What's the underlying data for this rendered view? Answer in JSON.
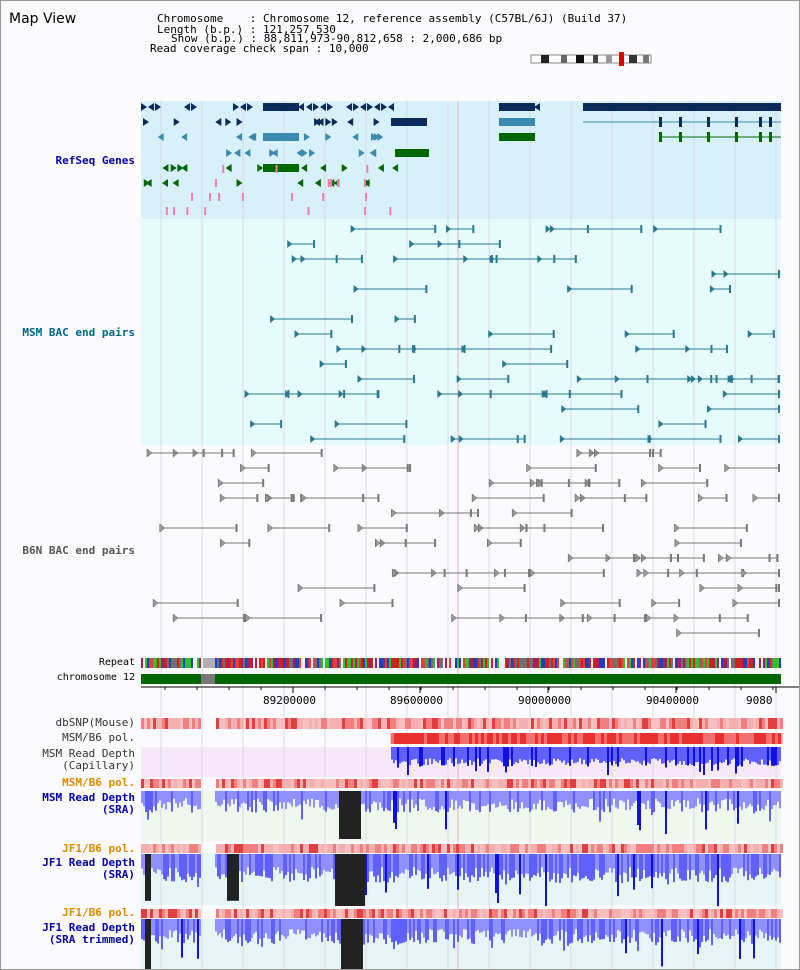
{
  "title": "Map View",
  "info": {
    "chromosome_label": "Chromosome",
    "chromosome_value": "Chromosome 12, reference assembly (C57BL/6J) (Build 37)",
    "length_label": "Length (b.p.)",
    "length_value": "121,257,530",
    "show_label": "Show (b.p.)",
    "show_value": "88,811,973-90,812,658 : 2,000,686 bp",
    "coverage_label": "Read coverage check span",
    "coverage_value": "10,000"
  },
  "tracks": {
    "refseq": "RefSeq Genes",
    "msm_bac": "MSM BAC end pairs",
    "b6n_bac": "B6N BAC end pairs",
    "repeat": "Repeat",
    "chromosome": "chromosome 12",
    "dbsnp": "dbSNP(Mouse)",
    "msm_b6_pol_1": "MSM/B6 pol.",
    "msm_read_depth_cap": "MSM Read Depth\n(Capillary)",
    "msm_b6_pol_2": "MSM/B6 pol.",
    "msm_read_depth_sra": "MSM Read Depth\n(SRA)",
    "jf1_b6_pol_1": "JF1/B6 pol.",
    "jf1_read_depth_sra": "JF1 Read Depth\n(SRA)",
    "jf1_b6_pol_2": "JF1/B6 pol.",
    "jf1_read_depth_trim": "JF1 Read Depth\n(SRA trimmed)"
  },
  "axis": {
    "ticks": [
      "89200000",
      "89600000",
      "90000000",
      "90400000",
      "9080"
    ]
  },
  "colors": {
    "refseq_label": "#0000aa",
    "msm_label": "#006688",
    "b6n_label": "#555555",
    "pol_label": "#e08a00",
    "depth_label": "#0000aa",
    "refseq_bg": "#d8f0fa",
    "msm_bg": "#e6fbfb",
    "gene_dark": "#0a2a5a",
    "gene_mid": "#3a8ab0",
    "gene_green": "#006600",
    "chromosome_bar": "#006600",
    "depth_blue": "#2020ff"
  }
}
